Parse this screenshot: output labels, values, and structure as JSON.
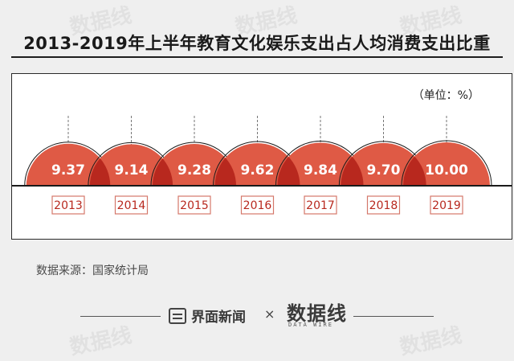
{
  "header": {
    "title": "2013-2019年上半年教育文化娱乐支出占人均消费支出比重"
  },
  "chart_data": {
    "type": "semicircle-bar",
    "unit_label": "（单位：%）",
    "categories": [
      "2013",
      "2014",
      "2015",
      "2016",
      "2017",
      "2018",
      "2019"
    ],
    "values": [
      9.37,
      9.14,
      9.28,
      9.62,
      9.84,
      9.7,
      10.0
    ],
    "value_labels": [
      "9.37",
      "9.14",
      "9.28",
      "9.62",
      "9.84",
      "9.70",
      "10.00"
    ],
    "colors": {
      "fill": "#df5a45",
      "overlap": "#b8281e",
      "label_border": "#d4776a",
      "baseline": "#1a1a1a"
    }
  },
  "footer": {
    "source": "数据来源：国家统计局",
    "brand1": "界面新闻",
    "times": "×",
    "brand2": "数据线",
    "brand2_sub": "DATA WIRE"
  },
  "watermark": {
    "text": "数据线"
  }
}
